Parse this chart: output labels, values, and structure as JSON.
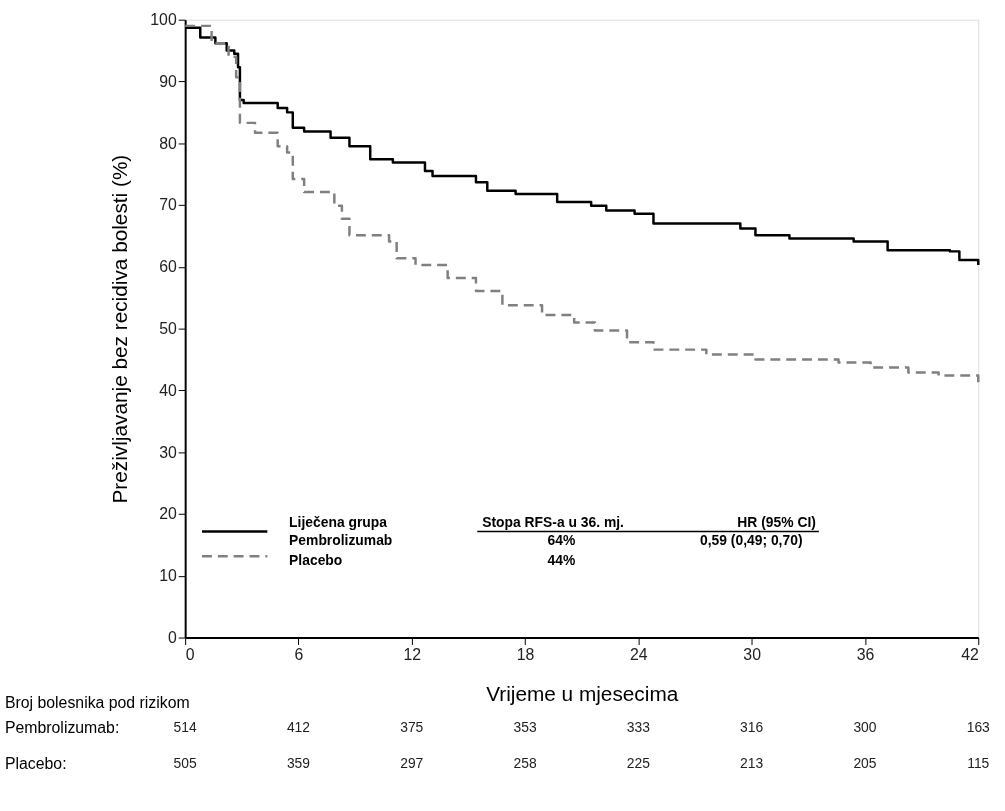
{
  "chart_data": {
    "type": "step",
    "xlabel": "Vrijeme u mjesecima",
    "ylabel": "Preživljavanje bez recidiva bolesti (%)",
    "xlim": [
      0,
      42
    ],
    "xticks": [
      0,
      6,
      12,
      18,
      24,
      30,
      36,
      42
    ],
    "ylim": [
      0,
      100
    ],
    "yticks": [
      0,
      10,
      20,
      30,
      40,
      50,
      60,
      70,
      80,
      90,
      100
    ],
    "grid": false,
    "legend": "bottom left",
    "series": [
      {
        "name": "Pembrolizumab",
        "color": "#000000",
        "line_style": "solid",
        "x": [
          0,
          0.8,
          1.6,
          2.2,
          2.6,
          2.8,
          2.9,
          3.1,
          4.9,
          5.4,
          5.7,
          6.3,
          7.7,
          8.7,
          9.8,
          11,
          12.7,
          13.1,
          15.4,
          16,
          17.5,
          19.7,
          21.5,
          22.3,
          23.8,
          24.8,
          29.4,
          30.2,
          32,
          35.4,
          37.2,
          40.5,
          41,
          42
        ],
        "values": [
          98.7,
          97.1,
          96.2,
          95,
          94.5,
          92.3,
          87,
          86.5,
          85.7,
          85,
          82.5,
          81.9,
          80.9,
          79.5,
          77.4,
          76.9,
          75.5,
          74.7,
          73.7,
          72.3,
          71.8,
          70.5,
          69.9,
          69.1,
          68.6,
          67,
          66.2,
          65.1,
          64.6,
          64.1,
          62.7,
          62.5,
          61.1,
          60.3
        ]
      },
      {
        "name": "Placebo",
        "color": "#808080",
        "line_style": "dashed",
        "x": [
          0,
          1.4,
          2.3,
          2.7,
          2.9,
          3.7,
          4.9,
          5.4,
          5.7,
          6.3,
          7.9,
          8.3,
          8.7,
          10.8,
          11.2,
          12.2,
          13.9,
          15.4,
          16.8,
          18.9,
          20.6,
          21.7,
          23.4,
          24.8,
          27.6,
          30.2,
          34.6,
          36.3,
          38.3,
          39.9,
          42
        ],
        "values": [
          99,
          96.2,
          94,
          90.7,
          83.3,
          81.7,
          79.5,
          78.5,
          74.2,
          72.1,
          69.9,
          67.8,
          65.1,
          64.1,
          61.4,
          60.3,
          58.2,
          56.1,
          53.8,
          52.2,
          51,
          49.7,
          47.8,
          46.6,
          45.8,
          45,
          44.5,
          43.7,
          42.9,
          42.4,
          41.3
        ]
      }
    ],
    "annotations": [
      "Liječena grupa",
      "Stopa RFS-a u 36. mj.",
      "HR (95% CI)",
      "64%",
      "0,59 (0,49; 0,70)",
      "44%",
      "Broj bolesnika pod rizikom",
      "Pembrolizumab:",
      "Placebo:",
      "514",
      "412",
      "375",
      "353",
      "333",
      "316",
      "300",
      "163",
      "505",
      "359",
      "297",
      "258",
      "225",
      "213",
      "205",
      "115"
    ]
  }
}
